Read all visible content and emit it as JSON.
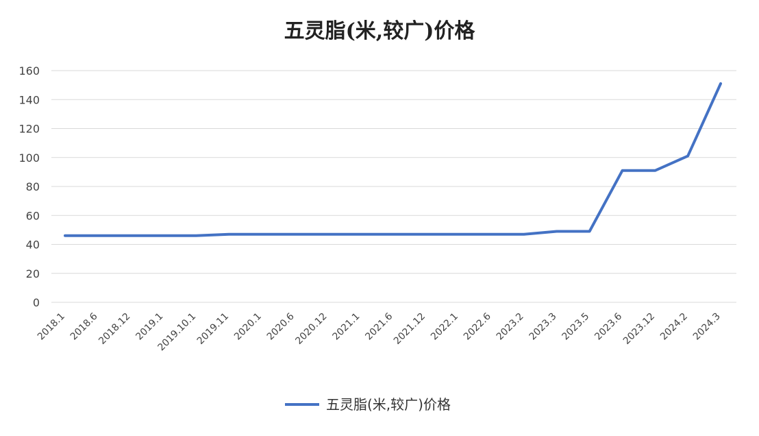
{
  "chart_data": {
    "type": "line",
    "title": "五灵脂(米,较广)价格",
    "xlabel": "",
    "ylabel": "",
    "ylim": [
      0,
      160
    ],
    "yticks": [
      "0",
      "20",
      "40",
      "60",
      "80",
      "100",
      "120",
      "140",
      "160"
    ],
    "grid": true,
    "legend_position": "bottom",
    "categories": [
      "2018.1",
      "2018.6",
      "2018.12",
      "2019.1",
      "2019.10.1",
      "2019.11",
      "2020.1",
      "2020.6",
      "2020.12",
      "2021.1",
      "2021.6",
      "2021.12",
      "2022.1",
      "2022.6",
      "2023.2",
      "2023.3",
      "2023.5",
      "2023.6",
      "2023.12",
      "2024.2",
      "2024.3"
    ],
    "series": [
      {
        "name": "五灵脂(米,较广)价格",
        "color": "#4472c4",
        "values": [
          46,
          46,
          46,
          46,
          46,
          47,
          47,
          47,
          47,
          47,
          47,
          47,
          47,
          47,
          47,
          49,
          49,
          91,
          91,
          101,
          151
        ]
      }
    ]
  }
}
